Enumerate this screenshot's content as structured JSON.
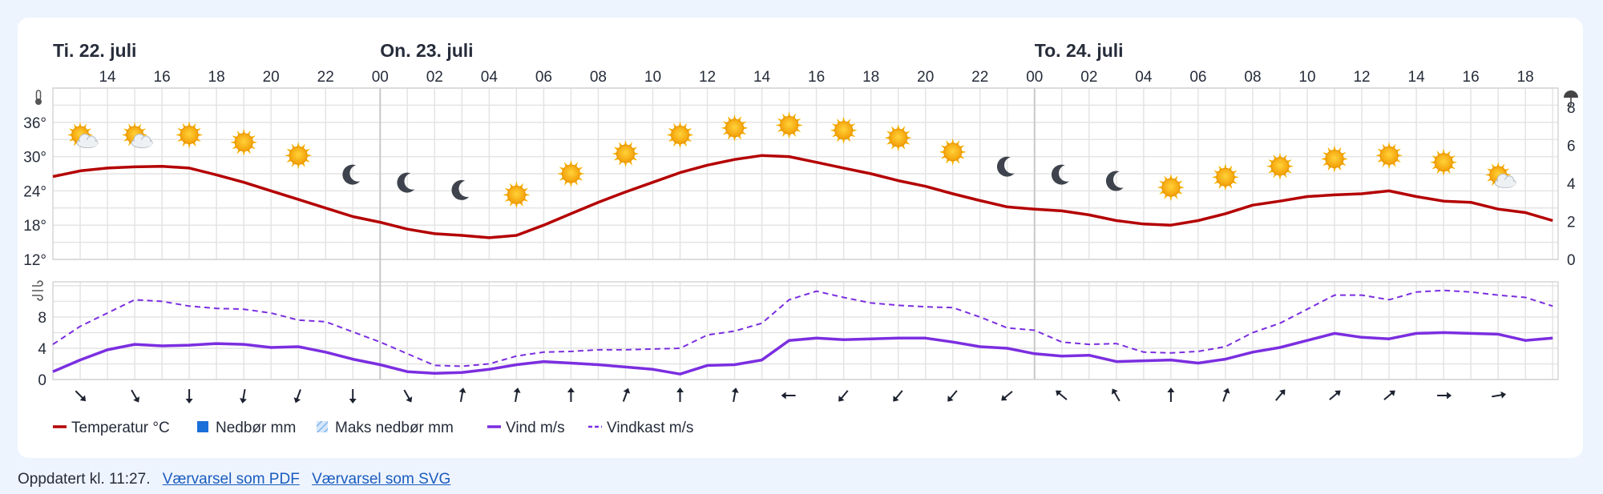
{
  "chart_data": {
    "type": "line",
    "days": [
      {
        "label": "Ti. 22. juli",
        "start_hour": 12
      },
      {
        "label": "On. 23. juli",
        "start_hour": 24
      },
      {
        "label": "To. 24. juli",
        "start_hour": 48
      }
    ],
    "x_hours": [
      12,
      13,
      14,
      15,
      16,
      17,
      18,
      19,
      20,
      21,
      22,
      23,
      24,
      25,
      26,
      27,
      28,
      29,
      30,
      31,
      32,
      33,
      34,
      35,
      36,
      37,
      38,
      39,
      40,
      41,
      42,
      43,
      44,
      45,
      46,
      47,
      48,
      49,
      50,
      51,
      52,
      53,
      54,
      55,
      56,
      57,
      58,
      59,
      60,
      61,
      62,
      63,
      64,
      65,
      66,
      67
    ],
    "x_tick_labels": [
      "14",
      "16",
      "18",
      "20",
      "22",
      "00",
      "02",
      "04",
      "06",
      "08",
      "10",
      "12",
      "14",
      "16",
      "18",
      "20",
      "22",
      "00",
      "02",
      "04",
      "06",
      "08",
      "10",
      "12",
      "14",
      "16",
      "18"
    ],
    "temperature": {
      "name": "Temperatur °C",
      "unit": "°C",
      "color": "#b40000",
      "ylim": [
        12,
        42
      ],
      "yticks": [
        12,
        18,
        24,
        30,
        36
      ],
      "ytick_labels": [
        "12°",
        "18°",
        "24°",
        "30°",
        "36°"
      ],
      "values": [
        26.5,
        27.5,
        28.0,
        28.2,
        28.3,
        28.0,
        26.8,
        25.5,
        24.0,
        22.5,
        21.0,
        19.5,
        18.5,
        17.3,
        16.5,
        16.2,
        15.8,
        16.2,
        18.0,
        20.0,
        22.0,
        23.8,
        25.5,
        27.2,
        28.5,
        29.5,
        30.2,
        30.0,
        29.0,
        28.0,
        27.0,
        25.8,
        24.8,
        23.5,
        22.3,
        21.2,
        20.8,
        20.5,
        19.8,
        18.8,
        18.2,
        18.0,
        18.8,
        20.0,
        21.5,
        22.2,
        23.0,
        23.3,
        23.5,
        24.0,
        23.0,
        22.2,
        22.0,
        20.8,
        20.2,
        18.8
      ]
    },
    "precip_axis": {
      "ylim": [
        0,
        9
      ],
      "yticks": [
        0,
        2,
        4,
        6,
        8
      ],
      "ytick_labels": [
        "0",
        "2",
        "4",
        "6",
        "8"
      ]
    },
    "wind": {
      "name": "Vind m/s",
      "unit": "m/s",
      "color": "#7b2ee0",
      "ylim": [
        0,
        12.5
      ],
      "yticks": [
        0,
        4,
        8
      ],
      "ytick_labels": [
        "0",
        "4",
        "8"
      ],
      "values": [
        1.0,
        2.5,
        3.8,
        4.5,
        4.3,
        4.4,
        4.6,
        4.5,
        4.1,
        4.2,
        3.5,
        2.6,
        1.9,
        1.0,
        0.8,
        0.9,
        1.3,
        1.9,
        2.3,
        2.1,
        1.9,
        1.6,
        1.3,
        0.7,
        1.8,
        1.9,
        2.5,
        5.0,
        5.3,
        5.1,
        5.2,
        5.3,
        5.3,
        4.8,
        4.2,
        4.0,
        3.3,
        3.0,
        3.1,
        2.3,
        2.4,
        2.5,
        2.1,
        2.6,
        3.5,
        4.1,
        5.0,
        5.9,
        5.4,
        5.2,
        5.9,
        6.0,
        5.9,
        5.8,
        5.0,
        5.3
      ]
    },
    "gust": {
      "name": "Vindkast m/s",
      "unit": "m/s",
      "color": "#7b2ee0",
      "values": [
        4.5,
        6.8,
        8.5,
        10.2,
        10.0,
        9.4,
        9.1,
        9.0,
        8.5,
        7.6,
        7.4,
        6.1,
        4.8,
        3.3,
        1.8,
        1.7,
        2.0,
        3.0,
        3.5,
        3.6,
        3.8,
        3.8,
        3.9,
        4.0,
        5.7,
        6.2,
        7.2,
        10.2,
        11.3,
        10.5,
        9.8,
        9.5,
        9.3,
        9.2,
        8.0,
        6.6,
        6.3,
        4.8,
        4.5,
        4.6,
        3.5,
        3.4,
        3.6,
        4.2,
        6.0,
        7.2,
        9.0,
        10.8,
        10.8,
        10.2,
        11.2,
        11.4,
        11.2,
        10.8,
        10.5,
        9.4
      ]
    },
    "weather_symbols": [
      {
        "hour": 13,
        "type": "partly-cloudy"
      },
      {
        "hour": 15,
        "type": "partly-cloudy"
      },
      {
        "hour": 17,
        "type": "sun"
      },
      {
        "hour": 19,
        "type": "sun"
      },
      {
        "hour": 21,
        "type": "sun"
      },
      {
        "hour": 23,
        "type": "moon"
      },
      {
        "hour": 25,
        "type": "moon"
      },
      {
        "hour": 27,
        "type": "moon"
      },
      {
        "hour": 29,
        "type": "sun"
      },
      {
        "hour": 31,
        "type": "sun"
      },
      {
        "hour": 33,
        "type": "sun"
      },
      {
        "hour": 35,
        "type": "sun"
      },
      {
        "hour": 37,
        "type": "sun"
      },
      {
        "hour": 39,
        "type": "sun"
      },
      {
        "hour": 41,
        "type": "sun"
      },
      {
        "hour": 43,
        "type": "sun"
      },
      {
        "hour": 45,
        "type": "sun"
      },
      {
        "hour": 47,
        "type": "moon"
      },
      {
        "hour": 49,
        "type": "moon"
      },
      {
        "hour": 51,
        "type": "moon"
      },
      {
        "hour": 53,
        "type": "sun"
      },
      {
        "hour": 55,
        "type": "sun"
      },
      {
        "hour": 57,
        "type": "sun"
      },
      {
        "hour": 59,
        "type": "sun"
      },
      {
        "hour": 61,
        "type": "sun"
      },
      {
        "hour": 63,
        "type": "sun"
      },
      {
        "hour": 65,
        "type": "partly-cloudy"
      }
    ],
    "symbol_temperatures": [
      33.8,
      33.8,
      33.8,
      32.5,
      30.2,
      26.8,
      25.4,
      24.1,
      23.3,
      27.0,
      30.5,
      33.8,
      35.0,
      35.5,
      34.6,
      33.3,
      30.8,
      28.2,
      26.8,
      25.7,
      24.6,
      26.4,
      28.3,
      29.6,
      30.2,
      29.0,
      26.8
    ],
    "wind_directions_from_deg": [
      315,
      330,
      0,
      10,
      20,
      0,
      330,
      190,
      190,
      180,
      200,
      180,
      190,
      90,
      40,
      40,
      40,
      50,
      130,
      150,
      180,
      200,
      220,
      230,
      230,
      270,
      260
    ],
    "legend": [
      {
        "label": "Temperatur °C",
        "swatch": "line",
        "color": "#b40000"
      },
      {
        "label": "Nedbør mm",
        "swatch": "square",
        "color": "#1a6fd8"
      },
      {
        "label": "Maks nedbør mm",
        "swatch": "hatched",
        "color": "#82b4ec"
      },
      {
        "label": "Vind m/s",
        "swatch": "line",
        "color": "#7b2ee0"
      },
      {
        "label": "Vindkast m/s",
        "swatch": "dashed",
        "color": "#7b2ee0"
      }
    ],
    "grid": true
  },
  "footer": {
    "updated_text": "Oppdatert kl. 11:27.",
    "pdf_link": "Værvarsel som PDF",
    "svg_link": "Værvarsel som SVG"
  }
}
